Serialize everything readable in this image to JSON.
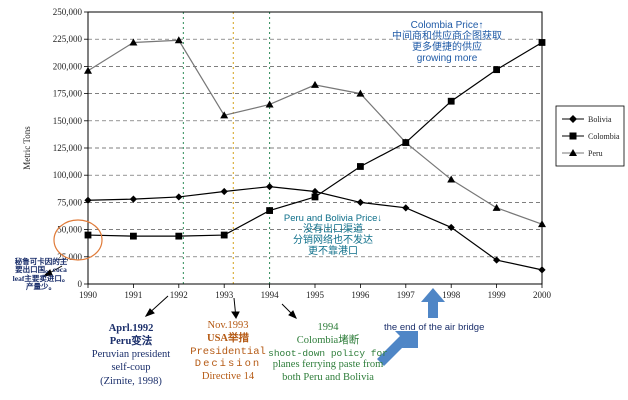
{
  "chart_data": {
    "type": "line",
    "ylabel": "Metric Tons",
    "x": [
      1990,
      1991,
      1992,
      1993,
      1994,
      1995,
      1996,
      1997,
      1998,
      1999,
      2000
    ],
    "xlim": [
      1990,
      2000
    ],
    "ylim": [
      0,
      250000
    ],
    "yticks": [
      "0",
      "25,000",
      "50,000",
      "75,000",
      "100,000",
      "125,000",
      "150,000",
      "175,000",
      "200,000",
      "225,000",
      "250,000"
    ],
    "ytick_values": [
      0,
      25000,
      50000,
      75000,
      100000,
      125000,
      150000,
      175000,
      200000,
      225000,
      250000
    ],
    "grid": "horizontal dashed",
    "legend_position": "right",
    "series": [
      {
        "name": "Bolivia",
        "marker": "diamond",
        "color": "#000000",
        "values": [
          77000,
          78000,
          80000,
          85000,
          89500,
          85000,
          75000,
          70000,
          52000,
          22000,
          13000
        ]
      },
      {
        "name": "Colombia",
        "marker": "square",
        "color": "#000000",
        "values": [
          45000,
          44000,
          44000,
          45000,
          67500,
          80000,
          108000,
          130000,
          168000,
          197000,
          222000
        ]
      },
      {
        "name": "Peru",
        "marker": "triangle",
        "color": "#777777",
        "values": [
          196000,
          222000,
          224000,
          155000,
          165000,
          183000,
          175000,
          130000,
          96000,
          70000,
          55000
        ]
      }
    ],
    "event_lines": [
      {
        "x": 1992.1,
        "color": "#2e8b57"
      },
      {
        "x": 1993.2,
        "color": "#d4a017"
      },
      {
        "x": 1994,
        "color": "#2e8b57"
      }
    ]
  },
  "annotations": {
    "colombia_price": {
      "title": "Colombia Price↑",
      "lines": [
        "中间商和供应商企图获取",
        "更多便捷的供应",
        "growing more"
      ]
    },
    "peru_bolivia_price": {
      "title": "Peru and Bolivia Price↓",
      "lines": [
        "没有出口渠道",
        "分销网络也不发达",
        "更不靠港口"
      ]
    },
    "left_note": {
      "lines": [
        "秘鲁可卡因的主",
        "要出口国。coca",
        "leaf主要卖进口。",
        "产量少。"
      ]
    },
    "event_1992": {
      "lines": [
        "Aprl.1992",
        "Peru变法",
        "Peruvian president",
        "self-coup",
        "(Zirnite, 1998)"
      ]
    },
    "event_1993": {
      "lines": [
        "Nov.1993",
        "USA举措",
        "Presidential",
        "Decision",
        "Directive 14"
      ]
    },
    "event_1994": {
      "lines": [
        "1994",
        "Colombia堵断",
        "shoot-down policy for",
        "planes ferrying paste from",
        "both Peru and Bolivia"
      ]
    },
    "air_bridge": "the end of the air bridge"
  },
  "colors": {
    "annotation_blue": "#1f5aa6",
    "annotation_teal": "#0e6f8a",
    "note_navy": "#1b2f6b",
    "event_1992": "#1b2f6b",
    "event_1993": "#b55a14",
    "event_1994": "#2e7d3a",
    "arrow_blue": "#4f86c6",
    "highlight_circle": "#e07b39"
  }
}
